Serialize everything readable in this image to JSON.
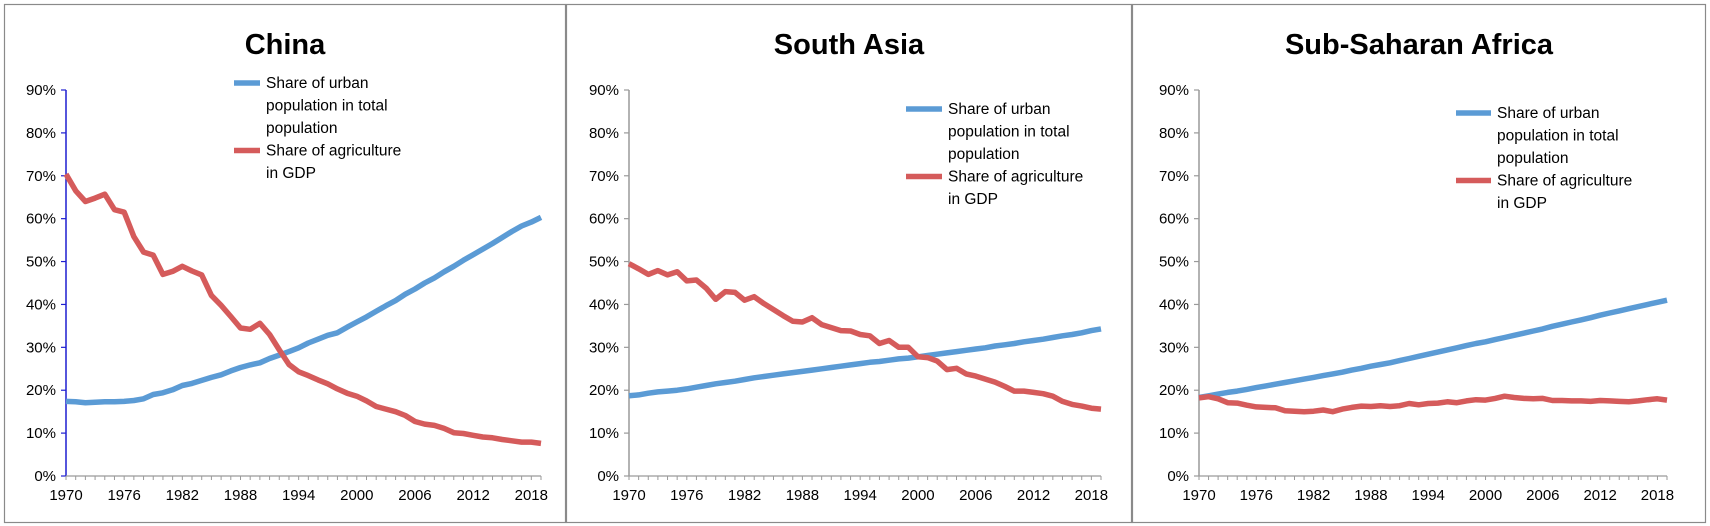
{
  "chart_data": [
    {
      "type": "line",
      "title": "China",
      "xlabel": "",
      "ylabel": "",
      "ylim": [
        0,
        90
      ],
      "y_ticks": [
        "0%",
        "10%",
        "20%",
        "30%",
        "40%",
        "50%",
        "60%",
        "70%",
        "80%",
        "90%"
      ],
      "x_ticks": [
        "1970",
        "1976",
        "1982",
        "1988",
        "1994",
        "2000",
        "2006",
        "2012",
        "2018"
      ],
      "x": [
        1970,
        1971,
        1972,
        1973,
        1974,
        1975,
        1976,
        1977,
        1978,
        1979,
        1980,
        1981,
        1982,
        1983,
        1984,
        1985,
        1986,
        1987,
        1988,
        1989,
        1990,
        1991,
        1992,
        1993,
        1994,
        1995,
        1996,
        1997,
        1998,
        1999,
        2000,
        2001,
        2002,
        2003,
        2004,
        2005,
        2006,
        2007,
        2008,
        2009,
        2010,
        2011,
        2012,
        2013,
        2014,
        2015,
        2016,
        2017,
        2018,
        2019
      ],
      "legend": "top-center",
      "series": [
        {
          "name": "Share of urban population in total population",
          "legend_lines": [
            "Share of urban",
            "population in total",
            "population"
          ],
          "color": "#5b9bd5",
          "values": [
            17.4,
            17.3,
            17.1,
            17.2,
            17.3,
            17.3,
            17.4,
            17.6,
            18,
            19,
            19.4,
            20.1,
            21.1,
            21.6,
            22.3,
            23.0,
            23.6,
            24.5,
            25.3,
            25.9,
            26.4,
            27.4,
            28.2,
            29.0,
            29.9,
            31.0,
            31.9,
            32.8,
            33.4,
            34.7,
            35.9,
            37.1,
            38.4,
            39.7,
            40.9,
            42.4,
            43.6,
            45.0,
            46.2,
            47.6,
            48.9,
            50.3,
            51.6,
            52.9,
            54.2,
            55.6,
            57.0,
            58.3,
            59.2,
            60.3
          ]
        },
        {
          "name": "Share of agriculture in GDP",
          "legend_lines": [
            "Share of agriculture",
            "in GDP"
          ],
          "color": "#d55b5b",
          "values": [
            70.4,
            66.5,
            64.0,
            64.8,
            65.7,
            62.1,
            61.5,
            55.8,
            52.2,
            51.5,
            47.0,
            47.7,
            48.9,
            47.8,
            46.9,
            42.1,
            39.8,
            37.2,
            34.5,
            34.2,
            35.6,
            33.0,
            29.4,
            26.0,
            24.3,
            23.4,
            22.4,
            21.5,
            20.3,
            19.3,
            18.6,
            17.5,
            16.2,
            15.6,
            15.0,
            14.1,
            12.7,
            12.1,
            11.8,
            11.1,
            10.1,
            9.9,
            9.5,
            9.1,
            8.9,
            8.5,
            8.2,
            7.9,
            7.9,
            7.6
          ]
        }
      ]
    },
    {
      "type": "line",
      "title": "South Asia",
      "xlabel": "",
      "ylabel": "",
      "ylim": [
        0,
        90
      ],
      "y_ticks": [
        "0%",
        "10%",
        "20%",
        "30%",
        "40%",
        "50%",
        "60%",
        "70%",
        "80%",
        "90%"
      ],
      "x_ticks": [
        "1970",
        "1976",
        "1982",
        "1988",
        "1994",
        "2000",
        "2006",
        "2012",
        "2018"
      ],
      "x": [
        1970,
        1971,
        1972,
        1973,
        1974,
        1975,
        1976,
        1977,
        1978,
        1979,
        1980,
        1981,
        1982,
        1983,
        1984,
        1985,
        1986,
        1987,
        1988,
        1989,
        1990,
        1991,
        1992,
        1993,
        1994,
        1995,
        1996,
        1997,
        1998,
        1999,
        2000,
        2001,
        2002,
        2003,
        2004,
        2005,
        2006,
        2007,
        2008,
        2009,
        2010,
        2011,
        2012,
        2013,
        2014,
        2015,
        2016,
        2017,
        2018,
        2019
      ],
      "legend": "top-right",
      "series": [
        {
          "name": "Share of urban population in total population",
          "legend_lines": [
            "Share of urban",
            "population in total",
            "population"
          ],
          "color": "#5b9bd5",
          "values": [
            18.7,
            18.9,
            19.3,
            19.6,
            19.8,
            20.0,
            20.3,
            20.7,
            21.1,
            21.5,
            21.8,
            22.1,
            22.5,
            22.9,
            23.2,
            23.5,
            23.8,
            24.1,
            24.4,
            24.7,
            25.0,
            25.3,
            25.6,
            25.9,
            26.2,
            26.5,
            26.7,
            27.0,
            27.3,
            27.5,
            27.8,
            28.1,
            28.4,
            28.7,
            29.0,
            29.3,
            29.6,
            29.9,
            30.3,
            30.6,
            30.9,
            31.3,
            31.6,
            31.9,
            32.3,
            32.7,
            33.0,
            33.4,
            33.9,
            34.3
          ]
        },
        {
          "name": "Share of agriculture in GDP",
          "legend_lines": [
            "Share of agriculture",
            "in GDP"
          ],
          "color": "#d55b5b",
          "values": [
            49.5,
            48.3,
            47.0,
            47.9,
            46.9,
            47.6,
            45.5,
            45.7,
            43.8,
            41.2,
            43.0,
            42.8,
            41.0,
            41.8,
            40.2,
            38.8,
            37.4,
            36.1,
            35.9,
            36.9,
            35.3,
            34.6,
            33.9,
            33.8,
            33.0,
            32.7,
            30.9,
            31.6,
            30.0,
            30.0,
            27.8,
            27.6,
            26.8,
            24.8,
            25.1,
            23.8,
            23.3,
            22.6,
            21.9,
            20.9,
            19.8,
            19.8,
            19.5,
            19.2,
            18.6,
            17.4,
            16.7,
            16.3,
            15.8,
            15.6
          ]
        }
      ]
    },
    {
      "type": "line",
      "title": "Sub-Saharan Africa",
      "xlabel": "",
      "ylabel": "",
      "ylim": [
        0,
        90
      ],
      "y_ticks": [
        "0%",
        "10%",
        "20%",
        "30%",
        "40%",
        "50%",
        "60%",
        "70%",
        "80%",
        "90%"
      ],
      "x_ticks": [
        "1970",
        "1976",
        "1982",
        "1988",
        "1994",
        "2000",
        "2006",
        "2012",
        "2018"
      ],
      "x": [
        1970,
        1971,
        1972,
        1973,
        1974,
        1975,
        1976,
        1977,
        1978,
        1979,
        1980,
        1981,
        1982,
        1983,
        1984,
        1985,
        1986,
        1987,
        1988,
        1989,
        1990,
        1991,
        1992,
        1993,
        1994,
        1995,
        1996,
        1997,
        1998,
        1999,
        2000,
        2001,
        2002,
        2003,
        2004,
        2005,
        2006,
        2007,
        2008,
        2009,
        2010,
        2011,
        2012,
        2013,
        2014,
        2015,
        2016,
        2017,
        2018,
        2019
      ],
      "legend": "top-right",
      "series": [
        {
          "name": "Share of urban population in total population",
          "legend_lines": [
            "Share of urban",
            "population in total",
            "population"
          ],
          "color": "#5b9bd5",
          "values": [
            18.3,
            18.7,
            19.1,
            19.5,
            19.8,
            20.2,
            20.6,
            21.0,
            21.4,
            21.8,
            22.2,
            22.6,
            23.0,
            23.4,
            23.8,
            24.2,
            24.7,
            25.1,
            25.6,
            26.0,
            26.4,
            26.9,
            27.4,
            27.9,
            28.4,
            28.9,
            29.4,
            29.9,
            30.4,
            30.9,
            31.3,
            31.8,
            32.3,
            32.8,
            33.3,
            33.8,
            34.3,
            34.9,
            35.4,
            35.9,
            36.4,
            36.9,
            37.5,
            38.0,
            38.5,
            39.0,
            39.5,
            40.0,
            40.5,
            41.0
          ]
        },
        {
          "name": "Share of agriculture in GDP",
          "legend_lines": [
            "Share of agriculture",
            "in GDP"
          ],
          "color": "#d55b5b",
          "values": [
            18.2,
            18.5,
            18.0,
            17.1,
            17.0,
            16.5,
            16.1,
            16.0,
            15.9,
            15.2,
            15.1,
            15.0,
            15.1,
            15.4,
            15.0,
            15.6,
            16.0,
            16.3,
            16.2,
            16.4,
            16.2,
            16.4,
            16.9,
            16.6,
            16.9,
            17.0,
            17.3,
            17.1,
            17.5,
            17.8,
            17.7,
            18.1,
            18.6,
            18.3,
            18.1,
            18.0,
            18.1,
            17.6,
            17.6,
            17.5,
            17.5,
            17.4,
            17.6,
            17.5,
            17.4,
            17.3,
            17.5,
            17.8,
            18.0,
            17.7
          ]
        }
      ]
    }
  ]
}
